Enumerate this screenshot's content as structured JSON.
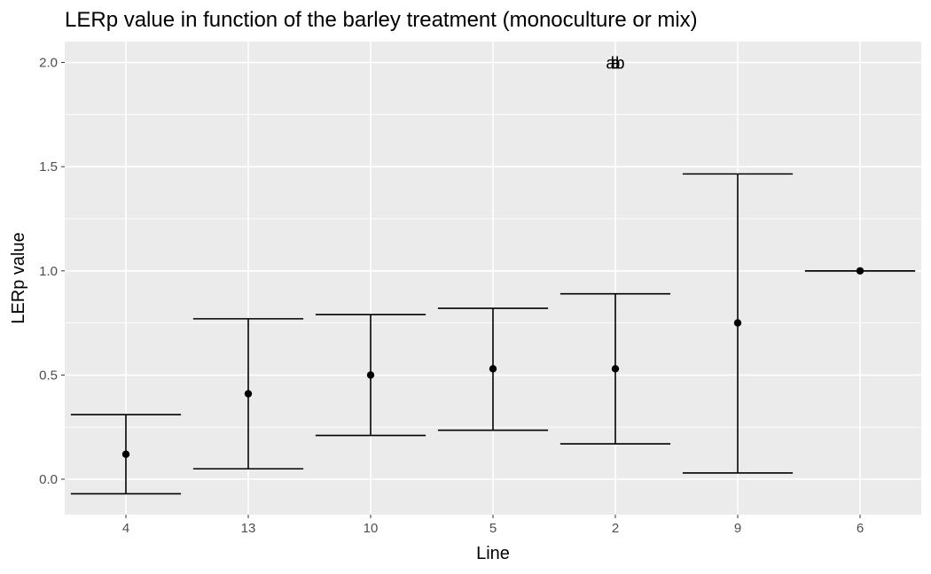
{
  "chart_data": {
    "type": "scatter",
    "title": "LERp value in function of the barley treatment (monoculture or mix)",
    "xlabel": "Line",
    "ylabel": "LERp value",
    "categories": [
      "4",
      "13",
      "10",
      "5",
      "2",
      "9",
      "6"
    ],
    "mean": [
      0.12,
      0.41,
      0.5,
      0.53,
      0.53,
      0.75,
      1.0
    ],
    "lower": [
      -0.07,
      0.05,
      0.21,
      0.235,
      0.17,
      0.03,
      1.0
    ],
    "upper": [
      0.31,
      0.77,
      0.79,
      0.82,
      0.89,
      1.465,
      1.0
    ],
    "ylim": [
      -0.17,
      2.1
    ],
    "yticks": [
      0.0,
      0.5,
      1.0,
      1.5,
      2.0
    ],
    "ytick_labels": [
      "0.0",
      "0.5",
      "1.0",
      "1.5",
      "2.0"
    ],
    "annotations": [
      {
        "category": "2",
        "y": 2.0,
        "text": "a"
      },
      {
        "category": "2",
        "y": 2.0,
        "text": "ab"
      },
      {
        "category": "2",
        "y": 2.0,
        "text": "b"
      }
    ],
    "grid": true,
    "panel_background": "#ebebeb",
    "grid_color": "#ffffff",
    "mark_color": "#000000"
  }
}
